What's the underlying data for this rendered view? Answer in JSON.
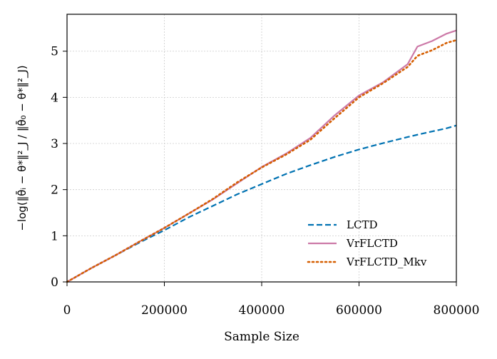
{
  "chart_data": {
    "type": "line",
    "title": "",
    "xlabel": "Sample Size",
    "ylabel": "−log(‖θ̄ᵢ − θ*‖²_J / ‖θ̄₀ − θ*‖²_J)",
    "xlim": [
      0,
      800000
    ],
    "ylim": [
      0,
      5.8
    ],
    "xticks": [
      0,
      200000,
      400000,
      600000,
      800000
    ],
    "xtick_labels": [
      "0",
      "200000",
      "400000",
      "600000",
      "800000"
    ],
    "yticks": [
      0,
      1,
      2,
      3,
      4,
      5
    ],
    "ytick_labels": [
      "0",
      "1",
      "2",
      "3",
      "4",
      "5"
    ],
    "grid": true,
    "legend_position": "lower-right",
    "x": [
      0,
      50000,
      100000,
      150000,
      200000,
      250000,
      300000,
      350000,
      400000,
      450000,
      500000,
      550000,
      600000,
      650000,
      700000,
      720000,
      750000,
      780000,
      800000
    ],
    "series": [
      {
        "name": "LCTD",
        "color": "#0072b2",
        "style": "dashed",
        "values": [
          0,
          0.3,
          0.58,
          0.86,
          1.12,
          1.4,
          1.65,
          1.9,
          2.12,
          2.34,
          2.53,
          2.71,
          2.87,
          3.01,
          3.14,
          3.19,
          3.26,
          3.33,
          3.39
        ]
      },
      {
        "name": "VrFLCTD",
        "color": "#cc79a7",
        "style": "solid",
        "values": [
          0,
          0.3,
          0.58,
          0.88,
          1.17,
          1.48,
          1.79,
          2.14,
          2.49,
          2.78,
          3.12,
          3.61,
          4.04,
          4.33,
          4.72,
          5.1,
          5.22,
          5.38,
          5.45
        ]
      },
      {
        "name": "VrFLCTD_Mkv",
        "color": "#d55e00",
        "style": "dotted",
        "values": [
          0,
          0.3,
          0.58,
          0.88,
          1.17,
          1.48,
          1.8,
          2.16,
          2.48,
          2.76,
          3.08,
          3.55,
          4.0,
          4.31,
          4.66,
          4.9,
          5.02,
          5.18,
          5.24
        ]
      }
    ]
  }
}
